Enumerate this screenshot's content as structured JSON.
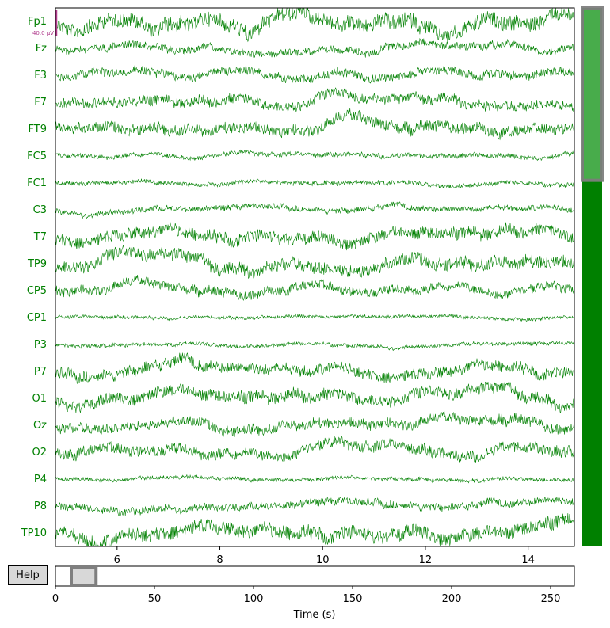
{
  "chart_data": [
    {
      "type": "line",
      "title": "",
      "xlabel": "",
      "ylabel": "",
      "xlim": [
        4.8,
        14.9
      ],
      "x_ticks": [
        6,
        8,
        10,
        12,
        14
      ],
      "channels": [
        "Fp1",
        "Fz",
        "F3",
        "F7",
        "FT9",
        "FC5",
        "FC1",
        "C3",
        "T7",
        "TP9",
        "CP5",
        "CP1",
        "P3",
        "P7",
        "O1",
        "Oz",
        "O2",
        "P4",
        "P8",
        "TP10"
      ],
      "channel_amplitude": [
        1.6,
        0.8,
        0.9,
        1.1,
        1.2,
        0.5,
        0.45,
        0.6,
        1.3,
        1.4,
        1.0,
        0.35,
        0.4,
        1.2,
        1.3,
        1.1,
        1.2,
        0.4,
        0.8,
        1.5
      ],
      "series_color": "#008000",
      "scale_bar_label": "40.0 µV",
      "scale_bar_color": "#b03b8c",
      "grid": false
    },
    {
      "type": "bar",
      "title": "",
      "xlabel": "Time (s)",
      "ylabel": "",
      "xlim": [
        0,
        262
      ],
      "x_ticks": [
        0,
        50,
        100,
        150,
        200,
        250
      ],
      "window_start": 4.8,
      "window_end": 14.9
    }
  ],
  "channel_scrollbar": {
    "visible_fraction": 0.33,
    "color": "#008000",
    "thumb_color": "#4caf50"
  },
  "help_button": {
    "label": "Help"
  }
}
